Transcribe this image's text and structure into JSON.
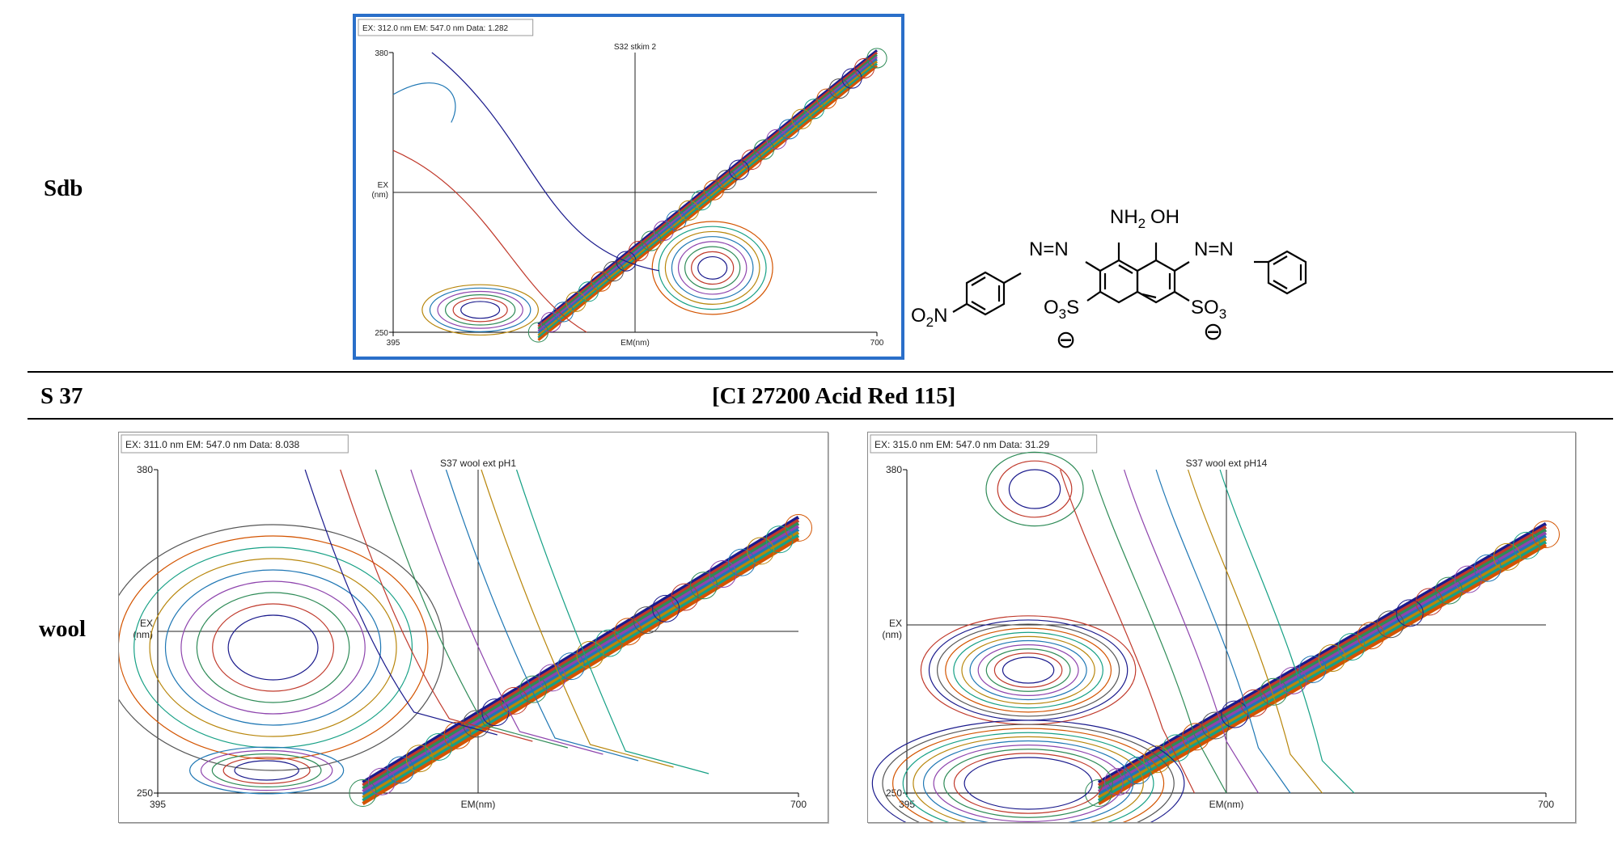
{
  "rows": {
    "sdb_label": "Sdb",
    "s37_label": "S 37",
    "dye_name": "[CI 27200 Acid Red 115]",
    "wool_label": "wool"
  },
  "structure": {
    "nh2": "NH",
    "nh2_sub": "2",
    "oh": "OH",
    "azo1": "N=N",
    "azo2": "N=N",
    "no2_a": "O",
    "no2_sub": "2",
    "no2_b": "N",
    "so3_left": "O",
    "so3_left_sub": "3",
    "so3_left_s": "S",
    "so3_right": "SO",
    "so3_right_sub": "3",
    "minus": "⊖"
  },
  "plots": [
    {
      "id": "sdb",
      "selected": true,
      "title": "S32 stkim 2",
      "ex_label": "EX:",
      "ex_value": "312.0",
      "ex_unit": "nm",
      "em_label": "EM:",
      "em_value": "547.0",
      "em_unit": "nm",
      "data_label": "Data:",
      "data_value": "1.282",
      "y_axis_label": "EX\n(nm)",
      "x_axis_label": "EM(nm)",
      "x_min": "395",
      "x_max": "700",
      "y_min": "250",
      "y_max": "380"
    },
    {
      "id": "wool-ph1",
      "selected": false,
      "title": "S37 wool ext pH1",
      "ex_label": "EX:",
      "ex_value": "311.0",
      "ex_unit": "nm",
      "em_label": "EM:",
      "em_value": "547.0",
      "em_unit": "nm",
      "data_label": "Data:",
      "data_value": "8.038",
      "y_axis_label": "EX\n(nm)",
      "x_axis_label": "EM(nm)",
      "x_min": "395",
      "x_max": "700",
      "y_min": "250",
      "y_max": "380"
    },
    {
      "id": "wool-ph14",
      "selected": false,
      "title": "S37 wool ext pH14",
      "ex_label": "EX:",
      "ex_value": "315.0",
      "ex_unit": "nm",
      "em_label": "EM:",
      "em_value": "547.0",
      "em_unit": "nm",
      "data_label": "Data:",
      "data_value": "31.29",
      "y_axis_label": "EX\n(nm)",
      "x_axis_label": "EM(nm)",
      "x_min": "395",
      "x_max": "700",
      "y_min": "250",
      "y_max": "380"
    }
  ],
  "colors": {
    "selection_border": "#2a6fc9",
    "contour_palette": [
      "#1a1a8c",
      "#c0392b",
      "#2e8b57",
      "#8e44ad",
      "#1f77b4",
      "#b8860b",
      "#16a085",
      "#d35400",
      "#555555"
    ]
  }
}
